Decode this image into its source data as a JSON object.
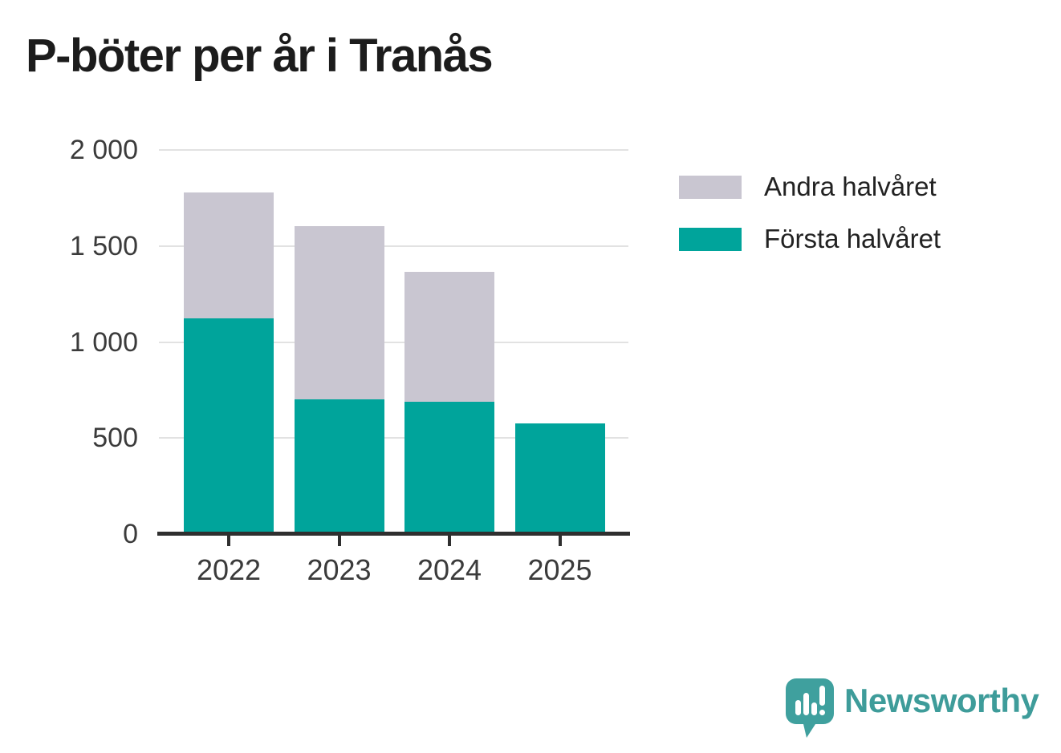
{
  "title": "P-böter per år i Tranås",
  "chart_data": {
    "type": "bar",
    "stacked": true,
    "title": "P-böter per år i Tranås",
    "categories": [
      "2022",
      "2023",
      "2024",
      "2025"
    ],
    "series": [
      {
        "name": "Första halvåret",
        "color": "#00a49b",
        "values": [
          1125,
          700,
          690,
          575
        ]
      },
      {
        "name": "Andra halvåret",
        "color": "#c9c6d1",
        "values": [
          655,
          905,
          675,
          0
        ]
      }
    ],
    "totals": [
      1780,
      1605,
      1365,
      575
    ],
    "xlabel": "",
    "ylabel": "",
    "ylim": [
      0,
      2000
    ],
    "yticks": [
      {
        "value": 0,
        "label": "0"
      },
      {
        "value": 500,
        "label": "500"
      },
      {
        "value": 1000,
        "label": "1 000"
      },
      {
        "value": 1500,
        "label": "1 500"
      },
      {
        "value": 2000,
        "label": "2 000"
      }
    ],
    "grid": "horizontal",
    "legend_position": "right-top"
  },
  "legend": {
    "items": [
      {
        "label": "Andra halvåret",
        "color": "#c9c6d1"
      },
      {
        "label": "Första halvåret",
        "color": "#00a49b"
      }
    ]
  },
  "footer": {
    "brand": "Newsworthy",
    "brand_color": "#3e9c9a",
    "logo_icon_color": "#3fa09e"
  }
}
